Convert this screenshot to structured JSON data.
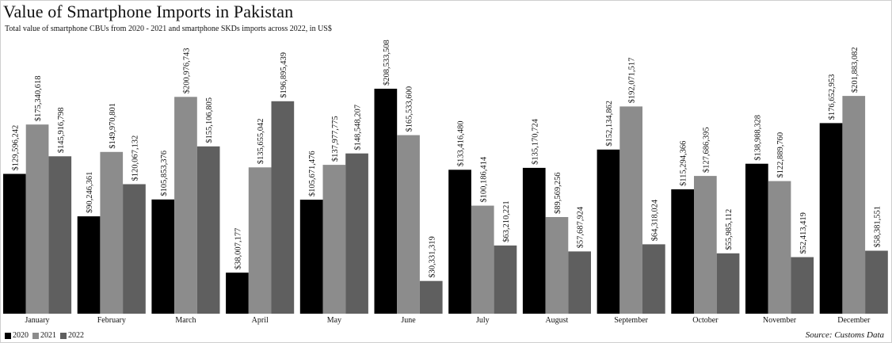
{
  "chart_data": {
    "type": "bar",
    "title": "Value of Smartphone Imports in Pakistan",
    "subtitle": "Total value of smartphone CBUs from 2020 - 2021 and smartphone SKDs imports across 2022, in US$",
    "source": "Source: Customs Data",
    "categories": [
      "January",
      "February",
      "March",
      "April",
      "May",
      "June",
      "July",
      "August",
      "September",
      "October",
      "November",
      "December"
    ],
    "series": [
      {
        "name": "2020",
        "color": "#000000",
        "values": [
          129596242,
          90246361,
          105853376,
          38007177,
          105671476,
          208533508,
          133416480,
          135170724,
          152134862,
          115294366,
          138988328,
          176652953
        ],
        "labels": [
          "$129,596,242",
          "$90,246,361",
          "$105,853,376",
          "$38,007,177",
          "$105,671,476",
          "$208,533,508",
          "$133,416,480",
          "$135,170,724",
          "$152,134,862",
          "$115,294,366",
          "$138,988,328",
          "$176,652,953"
        ]
      },
      {
        "name": "2021",
        "color": "#8c8c8c",
        "values": [
          175340618,
          149970801,
          200976743,
          135655042,
          137977775,
          165533600,
          100186414,
          89569256,
          192071517,
          127686395,
          122889760,
          201883082
        ],
        "labels": [
          "$175,340,618",
          "$149,970,801",
          "$200,976,743",
          "$135,655,042",
          "$137,977,775",
          "$165,533,600",
          "$100,186,414",
          "$89,569,256",
          "$192,071,517",
          "$127,686,395",
          "$122,889,760",
          "$201,883,082"
        ]
      },
      {
        "name": "2022",
        "color": "#5f5f5f",
        "values": [
          145916798,
          120067132,
          155106805,
          196895439,
          148548207,
          30331319,
          63210221,
          57687924,
          64318024,
          55985112,
          52413419,
          58381551
        ],
        "labels": [
          "$145,916,798",
          "$120,067,132",
          "$155,106,805",
          "$196,895,439",
          "$148,548,207",
          "$30,331,319",
          "$63,210,221",
          "$57,687,924",
          "$64,318,024",
          "$55,985,112",
          "$52,413,419",
          "$58,381,551"
        ]
      }
    ],
    "ylim": [
      0,
      210000000
    ],
    "grid": false,
    "legend": "bottom-left"
  }
}
